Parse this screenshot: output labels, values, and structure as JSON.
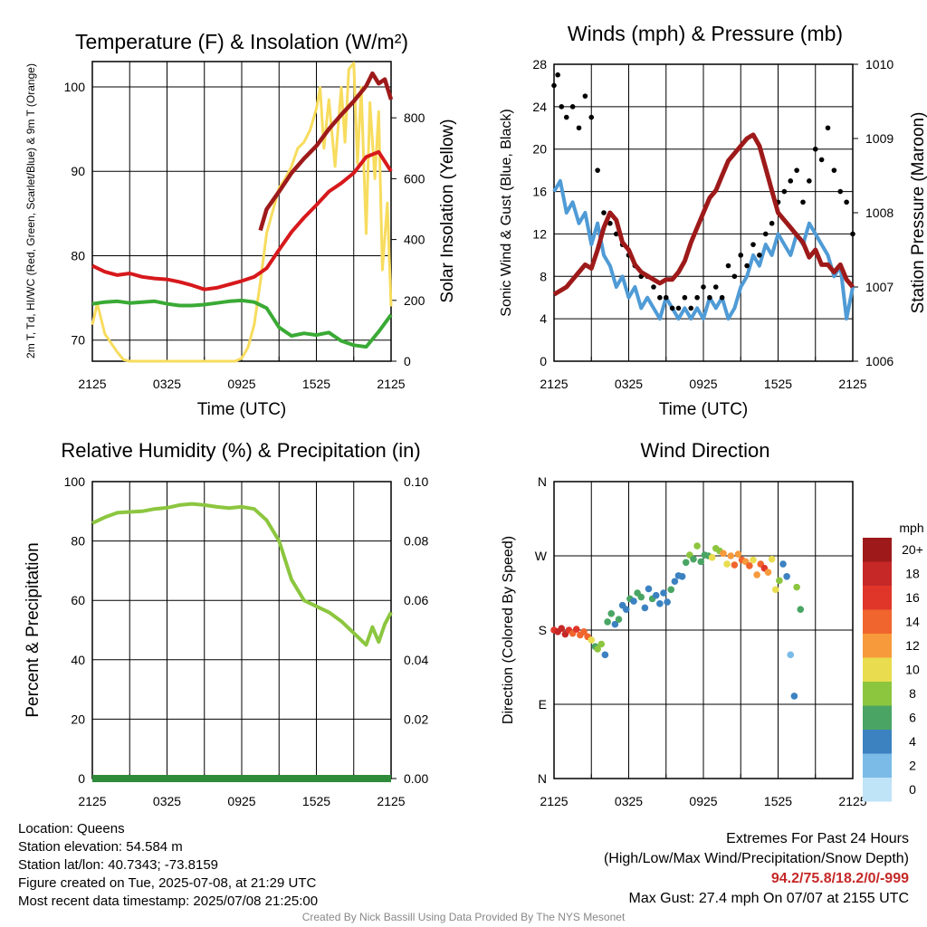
{
  "colors": {
    "temp_2m": "#d7191c",
    "heat_index": "#9e1a1a",
    "dewpoint": "#3aaa35",
    "temp_9m": "#f28e2b",
    "insolation": "#f7dc5e",
    "wind_sonic": "#4f9bd6",
    "gust": "#000000",
    "pressure": "#9e1a1a",
    "rh": "#8cc63f",
    "precip": "#2e8b3a"
  },
  "chart_data": [
    {
      "type": "line",
      "title": "Temperature (F) & Insolation (W/m²)",
      "xlabel": "Time (UTC)",
      "ylabel": "2m T, Td, HI/WC (Red, Green, Scarlet/Blue) & 9m T (Orange)",
      "y2label": "Solar Insolation (Yellow)",
      "xticks": [
        "2125",
        "0325",
        "0925",
        "1525",
        "2125"
      ],
      "yticks": [
        "70",
        "80",
        "90",
        "100"
      ],
      "y2ticks": [
        "0",
        "200",
        "400",
        "600",
        "800"
      ],
      "xlim": [
        0,
        24
      ],
      "ylim": [
        67.5,
        103
      ],
      "y2lim": [
        0,
        985
      ],
      "series": [
        {
          "key": "temp",
          "axis": "y",
          "x": [
            0,
            1,
            2,
            3,
            4,
            5,
            6,
            7,
            8,
            9,
            10,
            11,
            12,
            13,
            14,
            15,
            16,
            17,
            18,
            19,
            20,
            21,
            22,
            23,
            24
          ],
          "values": [
            78.8,
            78.1,
            77.7,
            77.9,
            77.5,
            77.3,
            77.2,
            76.9,
            76.5,
            76.0,
            76.2,
            76.6,
            77.0,
            77.5,
            78.5,
            80.7,
            82.8,
            84.5,
            86.0,
            87.6,
            88.6,
            89.8,
            91.7,
            92.3,
            90.0
          ]
        },
        {
          "key": "heat_index",
          "axis": "y",
          "x": [
            13.5,
            14,
            15,
            16,
            17,
            18,
            19,
            20,
            21,
            22,
            22.5,
            23,
            23.5,
            24
          ],
          "values": [
            83.0,
            85.5,
            87.6,
            89.8,
            91.5,
            93.0,
            95.0,
            96.7,
            98.3,
            100.1,
            101.6,
            100.4,
            100.9,
            98.5
          ]
        },
        {
          "key": "dewpoint",
          "axis": "y",
          "x": [
            0,
            1,
            2,
            3,
            4,
            5,
            6,
            7,
            8,
            9,
            10,
            11,
            12,
            13,
            14,
            15,
            16,
            17,
            18,
            19,
            20,
            21,
            22,
            23,
            24
          ],
          "values": [
            74.3,
            74.5,
            74.6,
            74.4,
            74.5,
            74.6,
            74.3,
            74.1,
            74.1,
            74.2,
            74.4,
            74.6,
            74.7,
            74.5,
            73.8,
            71.5,
            70.5,
            70.8,
            70.6,
            70.9,
            69.9,
            69.4,
            69.2,
            71.0,
            73.0
          ]
        },
        {
          "key": "insolation",
          "axis": "y2",
          "x": [
            0,
            0.4,
            1,
            2,
            2.5,
            3,
            4,
            5,
            6,
            7,
            8,
            9,
            10,
            11,
            11.5,
            12,
            12.5,
            13,
            13.5,
            14,
            15,
            15.5,
            16,
            16.5,
            17,
            17.5,
            18,
            18.3,
            18.6,
            19,
            19.5,
            20,
            20.3,
            20.6,
            21,
            21.3,
            21.6,
            22,
            22.3,
            22.7,
            23,
            23.3,
            23.7,
            24
          ],
          "values": [
            120,
            190,
            90,
            30,
            5,
            0,
            0,
            0,
            0,
            0,
            0,
            0,
            0,
            0,
            0,
            10,
            45,
            120,
            260,
            420,
            570,
            600,
            640,
            700,
            720,
            760,
            830,
            900,
            700,
            860,
            640,
            900,
            720,
            960,
            980,
            650,
            900,
            420,
            850,
            600,
            820,
            300,
            520,
            180
          ]
        },
        {
          "key": "precip_zero",
          "axis": "none",
          "x": [],
          "values": []
        }
      ]
    },
    {
      "type": "line",
      "title": "Winds (mph) & Pressure (mb)",
      "xlabel": "Time (UTC)",
      "ylabel": "Sonic Wind & Gust (Blue, Black)",
      "y2label": "Station Pressure (Maroon)",
      "xticks": [
        "2125",
        "0325",
        "0925",
        "1525",
        "2125"
      ],
      "yticks": [
        "0",
        "4",
        "8",
        "12",
        "16",
        "20",
        "24",
        "28"
      ],
      "y2ticks": [
        "1006",
        "1007",
        "1008",
        "1009",
        "1010"
      ],
      "xlim": [
        0,
        24
      ],
      "ylim": [
        0,
        28
      ],
      "y2lim": [
        1006,
        1010
      ],
      "series": [
        {
          "key": "wind",
          "axis": "y",
          "x": [
            0,
            0.5,
            1,
            1.5,
            2,
            2.5,
            3,
            3.5,
            4,
            4.5,
            5,
            5.5,
            6,
            6.5,
            7,
            7.5,
            8,
            8.5,
            9,
            9.5,
            10,
            10.5,
            11,
            11.5,
            12,
            12.5,
            13,
            13.5,
            14,
            14.5,
            15,
            15.5,
            16,
            16.5,
            17,
            17.5,
            18,
            18.5,
            19,
            19.5,
            20,
            20.5,
            21,
            21.5,
            22,
            22.5,
            23,
            23.5,
            24
          ],
          "values": [
            16,
            17,
            14,
            15,
            13,
            14,
            11,
            13,
            10,
            9,
            7,
            8,
            6,
            7,
            5,
            6,
            5,
            4,
            6,
            5,
            4,
            5,
            4,
            5,
            4,
            6,
            5,
            6,
            4,
            5,
            7,
            8,
            10,
            9,
            11,
            10,
            12,
            11,
            10,
            12,
            11,
            13,
            12,
            11,
            10,
            8,
            9,
            4,
            7
          ]
        },
        {
          "key": "gust",
          "axis": "y",
          "x": [
            0,
            0.3,
            0.6,
            1,
            1.5,
            2,
            2.5,
            3,
            3.5,
            4,
            4.5,
            5,
            5.5,
            6,
            6.5,
            7,
            7.5,
            8,
            8.5,
            9,
            9.5,
            10,
            10.5,
            11,
            11.5,
            12,
            12.5,
            13,
            13.5,
            14,
            14.5,
            15,
            15.5,
            16,
            16.5,
            17,
            17.5,
            18,
            18.5,
            19,
            19.5,
            20,
            20.5,
            21,
            21.5,
            22,
            22.5,
            23,
            23.5,
            24
          ],
          "values": [
            26,
            27,
            24,
            23,
            24,
            22,
            25,
            23,
            18,
            14,
            13,
            12,
            11,
            10,
            9,
            8,
            8,
            7,
            6,
            6,
            5,
            5,
            6,
            5,
            6,
            7,
            6,
            7,
            6,
            9,
            8,
            10,
            9,
            11,
            10,
            12,
            13,
            15,
            16,
            17,
            18,
            15,
            17,
            20,
            19,
            22,
            18,
            16,
            15,
            12
          ]
        },
        {
          "key": "pressure",
          "axis": "y2",
          "x": [
            0,
            0.5,
            1,
            1.5,
            2,
            2.5,
            3,
            3.5,
            4,
            4.5,
            5,
            5.5,
            6,
            6.5,
            7,
            7.5,
            8,
            8.5,
            9,
            9.5,
            10,
            10.5,
            11,
            11.5,
            12,
            12.5,
            13,
            13.5,
            14,
            14.5,
            15,
            15.5,
            16,
            16.5,
            17,
            17.5,
            18,
            18.5,
            19,
            19.5,
            20,
            20.5,
            21,
            21.5,
            22,
            22.5,
            23,
            23.5,
            24
          ],
          "values": [
            1006.9,
            1006.95,
            1007.0,
            1007.1,
            1007.2,
            1007.3,
            1007.25,
            1007.5,
            1007.8,
            1008.0,
            1007.9,
            1007.6,
            1007.5,
            1007.3,
            1007.2,
            1007.15,
            1007.1,
            1007.05,
            1007.1,
            1007.1,
            1007.2,
            1007.35,
            1007.6,
            1007.8,
            1008.0,
            1008.2,
            1008.3,
            1008.5,
            1008.7,
            1008.8,
            1008.9,
            1009.0,
            1009.05,
            1008.9,
            1008.6,
            1008.3,
            1008.0,
            1007.9,
            1007.8,
            1007.7,
            1007.6,
            1007.4,
            1007.5,
            1007.3,
            1007.3,
            1007.2,
            1007.3,
            1007.1,
            1007.0
          ]
        }
      ]
    },
    {
      "type": "line",
      "title": "Relative Humidity (%) & Precipitation (in)",
      "xlabel": "",
      "ylabel": "Percent & Precipitation",
      "xticks": [
        "2125",
        "0325",
        "0925",
        "1525",
        "2125"
      ],
      "yticks": [
        "0",
        "20",
        "40",
        "60",
        "80",
        "100"
      ],
      "y2ticks": [
        "0.00",
        "0.02",
        "0.04",
        "0.06",
        "0.08",
        "0.10"
      ],
      "xlim": [
        0,
        24
      ],
      "ylim": [
        0,
        100
      ],
      "y2lim": [
        0,
        0.1
      ],
      "series": [
        {
          "key": "rh",
          "axis": "y",
          "x": [
            0,
            1,
            2,
            3,
            4,
            5,
            6,
            7,
            8,
            9,
            10,
            11,
            12,
            13,
            14,
            15,
            16,
            17,
            18,
            19,
            20,
            21,
            21.5,
            22,
            22.5,
            23,
            23.5,
            24
          ],
          "values": [
            86,
            88,
            89.5,
            89.8,
            90,
            90.8,
            91.2,
            92.1,
            92.5,
            92.1,
            91.5,
            91.1,
            91.5,
            90.8,
            87,
            80,
            67,
            60,
            58,
            56,
            53,
            49,
            47,
            45,
            51,
            46,
            52,
            56
          ]
        },
        {
          "key": "precip",
          "axis": "y2",
          "x": [
            0,
            24
          ],
          "values": [
            0,
            0
          ]
        }
      ]
    },
    {
      "type": "scatter",
      "title": "Wind Direction",
      "xlabel": "",
      "ylabel": "Direction (Colored By Speed)",
      "xticks": [
        "2125",
        "0325",
        "0925",
        "1525",
        "2125"
      ],
      "yticks": [
        "N",
        "E",
        "S",
        "W",
        "N"
      ],
      "xlim": [
        0,
        24
      ],
      "ylim": [
        0,
        360
      ],
      "legend_title": "mph",
      "legend_labels": [
        "20+",
        "18",
        "16",
        "14",
        "12",
        "10",
        "8",
        "6",
        "4",
        "2",
        "0"
      ],
      "legend_colors": [
        "#9e1a1a",
        "#c62828",
        "#e0362a",
        "#f0652d",
        "#f79a3b",
        "#e9dd4f",
        "#8cc63f",
        "#4aa564",
        "#3c82c1",
        "#7bbbe8",
        "#bfe3f7"
      ],
      "points": [
        [
          0,
          180,
          16
        ],
        [
          0.3,
          178,
          18
        ],
        [
          0.6,
          182,
          17
        ],
        [
          0.9,
          175,
          18
        ],
        [
          1.2,
          180,
          16
        ],
        [
          1.5,
          176,
          14
        ],
        [
          1.8,
          181,
          15
        ],
        [
          2.1,
          174,
          14
        ],
        [
          2.4,
          178,
          13
        ],
        [
          2.7,
          172,
          14
        ],
        [
          3.0,
          168,
          9
        ],
        [
          3.3,
          160,
          6
        ],
        [
          3.5,
          157,
          8
        ],
        [
          3.8,
          163,
          7
        ],
        [
          4.1,
          150,
          4
        ],
        [
          4.3,
          190,
          6
        ],
        [
          4.6,
          200,
          5
        ],
        [
          4.9,
          187,
          4
        ],
        [
          5.2,
          193,
          5
        ],
        [
          5.5,
          210,
          4
        ],
        [
          5.8,
          205,
          4
        ],
        [
          6.1,
          218,
          5
        ],
        [
          6.4,
          215,
          4
        ],
        [
          6.7,
          225,
          6
        ],
        [
          7.0,
          220,
          5
        ],
        [
          7.3,
          207,
          4
        ],
        [
          7.6,
          230,
          4
        ],
        [
          7.9,
          218,
          5
        ],
        [
          8.2,
          222,
          4
        ],
        [
          8.5,
          212,
          4
        ],
        [
          8.8,
          225,
          3
        ],
        [
          9.1,
          214,
          4
        ],
        [
          9.4,
          229,
          5
        ],
        [
          9.7,
          239,
          4
        ],
        [
          10.0,
          246,
          4
        ],
        [
          10.3,
          245,
          4
        ],
        [
          10.6,
          262,
          6
        ],
        [
          10.9,
          271,
          7
        ],
        [
          11.2,
          266,
          6
        ],
        [
          11.5,
          282,
          7
        ],
        [
          11.8,
          263,
          6
        ],
        [
          12.1,
          271,
          5
        ],
        [
          12.4,
          270,
          6
        ],
        [
          12.7,
          268,
          9
        ],
        [
          13.0,
          279,
          7
        ],
        [
          13.3,
          276,
          8
        ],
        [
          13.6,
          273,
          11
        ],
        [
          13.9,
          260,
          10
        ],
        [
          14.2,
          270,
          12
        ],
        [
          14.5,
          259,
          13
        ],
        [
          14.8,
          272,
          12
        ],
        [
          15.1,
          265,
          14
        ],
        [
          15.4,
          263,
          12
        ],
        [
          15.7,
          258,
          13
        ],
        [
          16.0,
          265,
          10
        ],
        [
          16.3,
          247,
          11
        ],
        [
          16.6,
          260,
          13
        ],
        [
          16.9,
          255,
          15
        ],
        [
          17.2,
          250,
          12
        ],
        [
          17.5,
          266,
          10
        ],
        [
          17.8,
          229,
          9
        ],
        [
          18.1,
          240,
          7
        ],
        [
          18.4,
          260,
          4
        ],
        [
          18.7,
          245,
          4
        ],
        [
          19.0,
          150,
          2
        ],
        [
          19.3,
          100,
          4
        ],
        [
          19.5,
          232,
          8
        ],
        [
          19.8,
          205,
          6
        ]
      ],
      "gust_note": ""
    }
  ],
  "footer": {
    "location": "Location: Queens",
    "elevation": "Station elevation: 54.584 m",
    "latlon": "Station lat/lon: 40.7343; -73.8159",
    "created": "Figure created on Tue, 2025-07-08, at 21:29 UTC",
    "recent": "Most recent data timestamp: 2025/07/08 21:25:00",
    "extremes_title": "Extremes For Past 24 Hours",
    "extremes_fields": "(High/Low/Max Wind/Precipitation/Snow Depth)",
    "extremes_values": "94.2/75.8/18.2/0/-999",
    "max_gust": "Max Gust: 27.4 mph On 07/07 at 2155 UTC",
    "credit": "Created By Nick Bassill Using Data Provided By The NYS Mesonet"
  }
}
